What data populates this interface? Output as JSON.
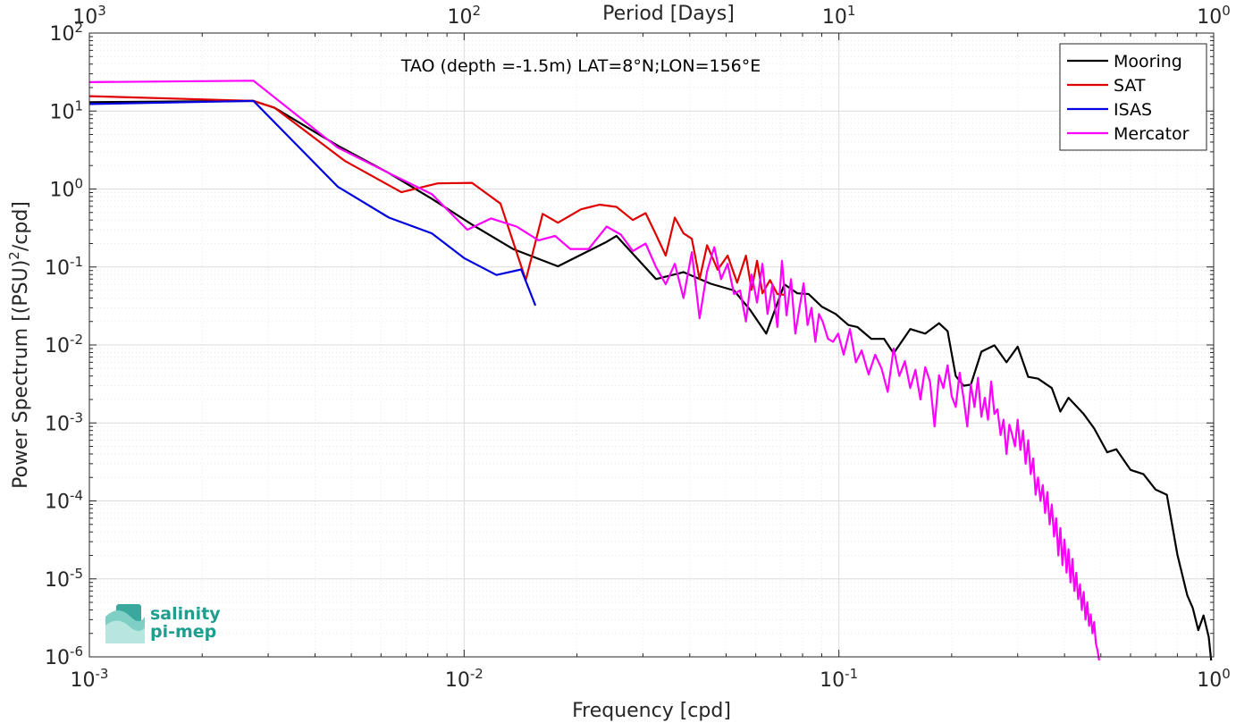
{
  "chart_data": {
    "type": "line",
    "title": "TAO (depth =-1.5m) LAT=8°N;LON=156°E",
    "xlabel": "Frequency [cpd]",
    "ylabel": "Power Spectrum [(PSU)^2/cpd]",
    "x2label": "Period [Days]",
    "xscale": "log",
    "yscale": "log",
    "xlim": [
      0.001,
      1
    ],
    "ylim": [
      1e-06,
      100
    ],
    "grid": true,
    "legend_position": "top-right",
    "x_ticks": [
      {
        "base": "10",
        "exp": "-3"
      },
      {
        "base": "10",
        "exp": "-2"
      },
      {
        "base": "10",
        "exp": "-1"
      },
      {
        "base": "10",
        "exp": "0"
      }
    ],
    "x2_ticks": [
      {
        "base": "10",
        "exp": "3"
      },
      {
        "base": "10",
        "exp": "2"
      },
      {
        "base": "10",
        "exp": "1"
      },
      {
        "base": "10",
        "exp": "0"
      }
    ],
    "y_ticks": [
      {
        "base": "10",
        "exp": "-6"
      },
      {
        "base": "10",
        "exp": "-5"
      },
      {
        "base": "10",
        "exp": "-4"
      },
      {
        "base": "10",
        "exp": "-3"
      },
      {
        "base": "10",
        "exp": "-2"
      },
      {
        "base": "10",
        "exp": "-1"
      },
      {
        "base": "10",
        "exp": "0"
      },
      {
        "base": "10",
        "exp": "1"
      },
      {
        "base": "10",
        "exp": "2"
      }
    ],
    "series": [
      {
        "name": "Mooring",
        "color": "#000000",
        "x": [
          0.001,
          0.00274,
          0.00312,
          0.0046,
          0.0063,
          0.0082,
          0.0105,
          0.0135,
          0.0178,
          0.024,
          0.0255,
          0.0325,
          0.0385,
          0.0455,
          0.0525,
          0.058,
          0.064,
          0.0715,
          0.0775,
          0.083,
          0.09,
          0.098,
          0.106,
          0.112,
          0.122,
          0.132,
          0.14,
          0.155,
          0.17,
          0.185,
          0.195,
          0.205,
          0.215,
          0.225,
          0.24,
          0.26,
          0.28,
          0.3,
          0.32,
          0.34,
          0.37,
          0.39,
          0.41,
          0.45,
          0.48,
          0.52,
          0.55,
          0.6,
          0.65,
          0.7,
          0.75,
          0.8,
          0.85,
          0.88,
          0.91,
          0.94,
          0.97,
          0.985
        ],
        "y": [
          13,
          13.5,
          11,
          3.6,
          1.6,
          0.75,
          0.35,
          0.17,
          0.102,
          0.21,
          0.25,
          0.07,
          0.086,
          0.061,
          0.05,
          0.028,
          0.014,
          0.06,
          0.046,
          0.045,
          0.031,
          0.025,
          0.018,
          0.017,
          0.012,
          0.012,
          0.0078,
          0.016,
          0.014,
          0.019,
          0.015,
          0.004,
          0.003,
          0.0031,
          0.0082,
          0.0099,
          0.006,
          0.0095,
          0.0039,
          0.0037,
          0.0028,
          0.0014,
          0.0021,
          0.0013,
          0.00085,
          0.00042,
          0.00046,
          0.00025,
          0.00022,
          0.00014,
          0.00012,
          2.05e-05,
          6.2e-06,
          4.2e-06,
          2.2e-06,
          3.4e-06,
          1.8e-06,
          9e-07
        ]
      },
      {
        "name": "SAT",
        "color": "#e00000",
        "x": [
          0.001,
          0.00274,
          0.00312,
          0.0048,
          0.0068,
          0.0085,
          0.0105,
          0.0125,
          0.0146,
          0.0162,
          0.0178,
          0.0205,
          0.023,
          0.0255,
          0.0282,
          0.0305,
          0.0325,
          0.0345,
          0.0365,
          0.0385,
          0.0405,
          0.0425,
          0.0445,
          0.0475,
          0.0505,
          0.0535,
          0.0565,
          0.0585,
          0.0605,
          0.0625,
          0.0655,
          0.0685,
          0.0715
        ],
        "y": [
          15.5,
          13.5,
          11,
          2.3,
          0.91,
          1.18,
          1.2,
          0.65,
          0.068,
          0.48,
          0.37,
          0.55,
          0.63,
          0.59,
          0.4,
          0.49,
          0.26,
          0.14,
          0.43,
          0.27,
          0.23,
          0.07,
          0.19,
          0.092,
          0.14,
          0.063,
          0.14,
          0.051,
          0.12,
          0.046,
          0.068,
          0.045,
          0.044
        ]
      },
      {
        "name": "ISAS",
        "color": "#0000e0",
        "x": [
          0.001,
          0.00274,
          0.0046,
          0.0063,
          0.0082,
          0.01,
          0.0122,
          0.0142,
          0.0155
        ],
        "y": [
          12.3,
          13.5,
          1.07,
          0.43,
          0.27,
          0.13,
          0.079,
          0.093,
          0.032
        ]
      },
      {
        "name": "Mercator",
        "color": "#ff00ff",
        "x": [
          0.001,
          0.00274,
          0.0046,
          0.0063,
          0.0082,
          0.0102,
          0.0118,
          0.0138,
          0.0158,
          0.0175,
          0.0192,
          0.0215,
          0.024,
          0.0262,
          0.0282,
          0.0305,
          0.0325,
          0.0345,
          0.0365,
          0.0385,
          0.0405,
          0.0425,
          0.0445,
          0.0465,
          0.0485,
          0.0505,
          0.0525,
          0.0545,
          0.0565,
          0.0585,
          0.0605,
          0.0625,
          0.0645,
          0.0665,
          0.0685,
          0.0705,
          0.0725,
          0.0745,
          0.0765,
          0.0785,
          0.0805,
          0.0825,
          0.0845,
          0.0865,
          0.0885,
          0.0905,
          0.0935,
          0.0965,
          0.0995,
          0.103,
          0.107,
          0.111,
          0.115,
          0.12,
          0.125,
          0.13,
          0.135,
          0.14,
          0.145,
          0.15,
          0.155,
          0.16,
          0.165,
          0.17,
          0.175,
          0.18,
          0.185,
          0.19,
          0.195,
          0.2,
          0.205,
          0.21,
          0.215,
          0.22,
          0.225,
          0.23,
          0.235,
          0.24,
          0.245,
          0.25,
          0.255,
          0.26,
          0.265,
          0.27,
          0.275,
          0.28,
          0.285,
          0.29,
          0.295,
          0.3,
          0.305,
          0.31,
          0.315,
          0.32,
          0.325,
          0.33,
          0.335,
          0.34,
          0.345,
          0.35,
          0.355,
          0.36,
          0.365,
          0.37,
          0.375,
          0.38,
          0.385,
          0.39,
          0.395,
          0.4,
          0.405,
          0.41,
          0.415,
          0.42,
          0.425,
          0.43,
          0.435,
          0.44,
          0.445,
          0.45,
          0.455,
          0.46,
          0.465,
          0.47,
          0.475,
          0.48,
          0.485,
          0.49,
          0.495
        ],
        "y": [
          23.5,
          24.5,
          3.4,
          1.6,
          0.86,
          0.3,
          0.42,
          0.33,
          0.22,
          0.25,
          0.17,
          0.17,
          0.33,
          0.26,
          0.16,
          0.2,
          0.1,
          0.06,
          0.11,
          0.04,
          0.155,
          0.022,
          0.088,
          0.18,
          0.07,
          0.11,
          0.045,
          0.05,
          0.02,
          0.08,
          0.035,
          0.11,
          0.025,
          0.06,
          0.017,
          0.12,
          0.024,
          0.07,
          0.014,
          0.03,
          0.062,
          0.018,
          0.03,
          0.011,
          0.025,
          0.02,
          0.012,
          0.011,
          0.014,
          0.0075,
          0.016,
          0.006,
          0.0085,
          0.0042,
          0.0075,
          0.005,
          0.0025,
          0.009,
          0.004,
          0.0062,
          0.0028,
          0.0048,
          0.002,
          0.0052,
          0.0034,
          0.0009,
          0.0041,
          0.0028,
          0.0055,
          0.0022,
          0.0016,
          0.0044,
          0.0021,
          0.0009,
          0.0031,
          0.0016,
          0.0038,
          0.0012,
          0.0021,
          0.0011,
          0.0034,
          0.0013,
          0.0015,
          0.0007,
          0.0011,
          0.0004,
          0.00095,
          0.0007,
          0.0005,
          0.0011,
          0.00045,
          0.0008,
          0.0003,
          0.0006,
          0.00022,
          0.00035,
          0.00012,
          0.0002,
          0.0001,
          0.00016,
          7e-05,
          0.00013,
          5e-05,
          9e-05,
          3.5e-05,
          6e-05,
          2e-05,
          4.5e-05,
          1.5e-05,
          3.2e-05,
          1.2e-05,
          2.4e-05,
          9e-06,
          1.8e-05,
          7e-06,
          1.2e-05,
          5.5e-06,
          8.5e-06,
          4e-06,
          6.8e-06,
          3e-06,
          5e-06,
          2.5e-06,
          3.5e-06,
          2e-06,
          2.8e-06,
          1.5e-06,
          1.2e-06,
          9e-07
        ]
      }
    ]
  },
  "logo": {
    "line1": "salinity",
    "line2": "pi-mep"
  }
}
